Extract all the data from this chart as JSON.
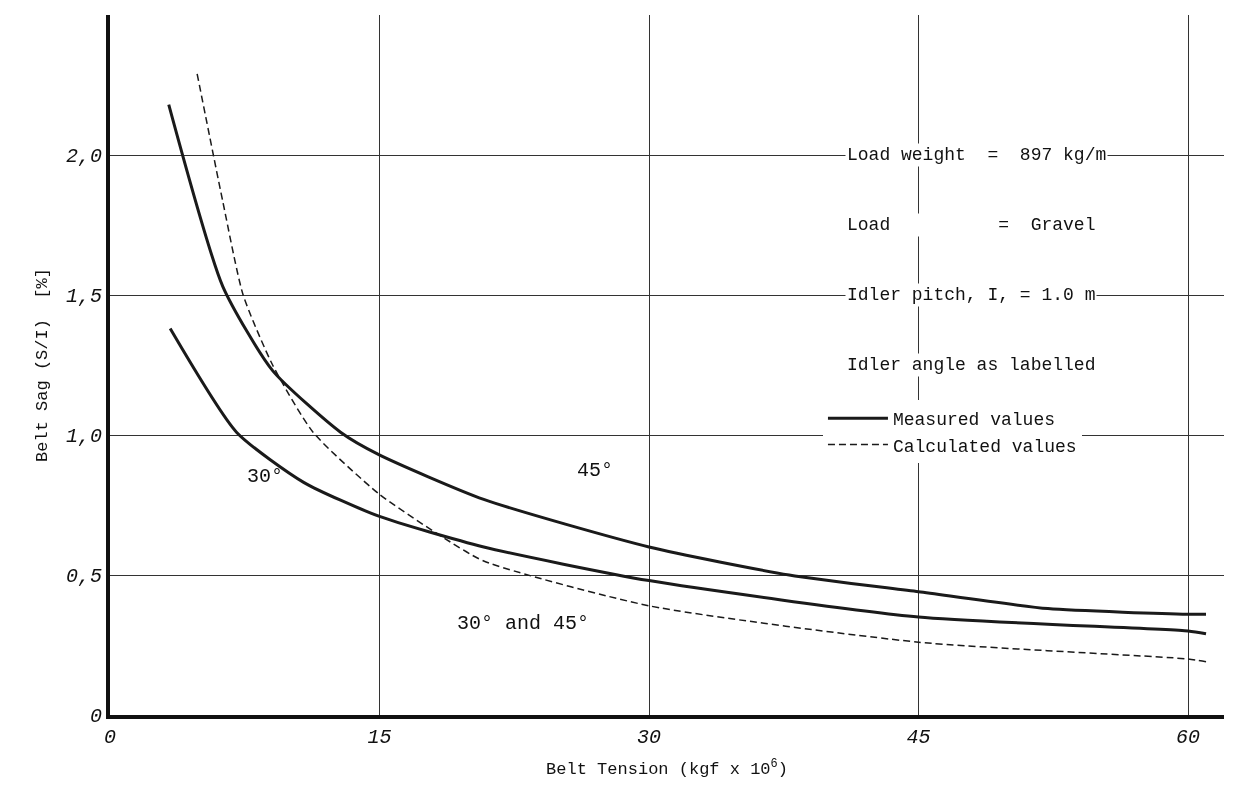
{
  "chart_data": {
    "type": "line",
    "xlabel": "Belt Tension (kgf x 10$^{6}$)",
    "ylabel": "Belt Sag (S/I)  [%]",
    "xlim": [
      0,
      62
    ],
    "ylim": [
      0,
      2.5
    ],
    "xticks": [
      0,
      15,
      30,
      45,
      60
    ],
    "yticks": [
      0,
      {
        "value": 0.5,
        "label": "0,5"
      },
      {
        "value": 1.0,
        "label": "1,0"
      },
      {
        "value": 1.5,
        "label": "1,5"
      },
      {
        "value": 2.0,
        "label": "2,0"
      }
    ],
    "grid": true,
    "legend": "right",
    "marker": "none",
    "series": [
      {
        "name": "Measured values",
        "color": "#1a1a1a",
        "line_style": "solid",
        "x": [
          3.27,
          6.28,
          9.05,
          12.83,
          14.96,
          20.8,
          30,
          37.8,
          45,
          52.2,
          60,
          61
        ],
        "values": [
          2.18,
          1.53,
          1.23,
          1.01,
          0.93,
          0.77,
          0.6,
          0.5,
          0.44,
          0.38,
          0.36,
          0.36
        ]
      },
      {
        "color": "#1a1a1a",
        "line_style": "solid",
        "x": [
          3.35,
          7.04,
          10.8,
          14.96,
          20.8,
          30,
          45,
          60,
          61
        ],
        "values": [
          1.38,
          1.01,
          0.83,
          0.71,
          0.6,
          0.48,
          0.35,
          0.3,
          0.29
        ]
      },
      {
        "name": "Calculated values",
        "color": "#1a1a1a",
        "line_style": "dashed",
        "x": [
          4.85,
          6.29,
          7.41,
          9.05,
          11.3,
          14.96,
          18.4,
          20.8,
          30,
          45,
          60,
          61
        ],
        "values": [
          2.29,
          1.83,
          1.5,
          1.25,
          1.01,
          0.79,
          0.64,
          0.55,
          0.39,
          0.26,
          0.2,
          0.19
        ]
      }
    ],
    "annotations": [
      "30°",
      "45°",
      "30° and 45°",
      "Load weight  =  897 kg/m",
      "Load          =  Gravel",
      "Idler pitch, I, = 1.0 m",
      "Idler angle as labelled"
    ]
  }
}
